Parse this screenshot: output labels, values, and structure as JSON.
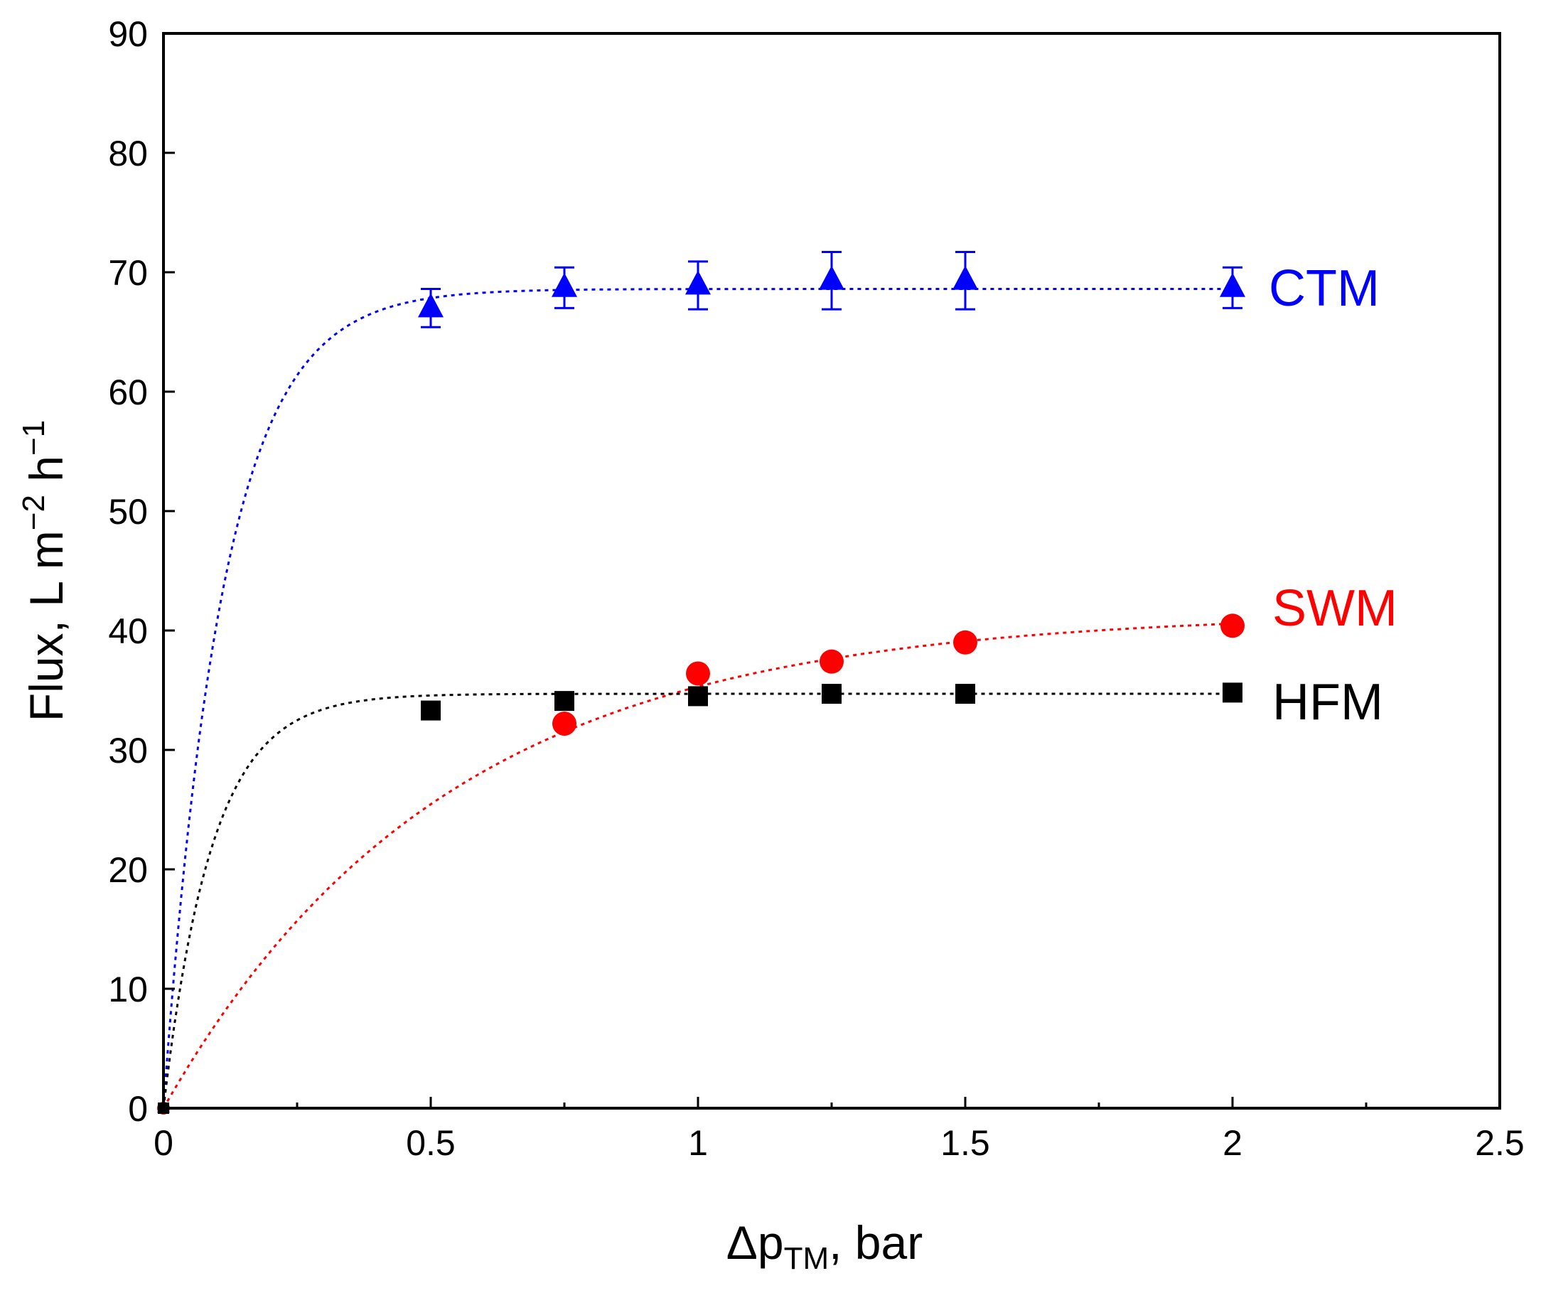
{
  "chart_data": {
    "type": "scatter",
    "title": "",
    "xlabel": {
      "symbol": "Δp",
      "subscript": "TM",
      "suffix": ", bar"
    },
    "ylabel": {
      "base": "Flux, L m",
      "exp1": "−2",
      "mid": " h",
      "exp2": "−1"
    },
    "xlim": [
      0,
      2.5
    ],
    "ylim": [
      0,
      90
    ],
    "x_ticks": [
      "0",
      "0.5",
      "1",
      "1.5",
      "2",
      "2.5"
    ],
    "x_tick_values": [
      0,
      0.5,
      1,
      1.5,
      2,
      2.5
    ],
    "y_ticks": [
      "0",
      "10",
      "20",
      "30",
      "40",
      "50",
      "60",
      "70",
      "80",
      "90"
    ],
    "y_tick_values": [
      0,
      10,
      20,
      30,
      40,
      50,
      60,
      70,
      80,
      90
    ],
    "grid": false,
    "series": [
      {
        "name": "CTM",
        "marker": "triangle",
        "color": "#0000ff",
        "x": [
          0,
          0.5,
          0.75,
          1.0,
          1.25,
          1.5,
          2.0
        ],
        "y": [
          0,
          67.0,
          68.7,
          68.9,
          69.3,
          69.3,
          68.7
        ],
        "error": [
          0,
          1.6,
          1.7,
          2.0,
          2.4,
          2.4,
          1.7
        ],
        "fit": {
          "a": 68.6,
          "k": 9.0
        }
      },
      {
        "name": "SWM",
        "marker": "circle",
        "color": "#ff0000",
        "x": [
          0,
          0.75,
          1.0,
          1.25,
          1.5,
          2.0
        ],
        "y": [
          0,
          32.2,
          36.4,
          37.4,
          39.0,
          40.4
        ],
        "error": [
          0,
          0,
          0,
          0,
          0,
          0
        ],
        "fit": {
          "a": 41.5,
          "k": 1.9
        }
      },
      {
        "name": "HFM",
        "marker": "square",
        "color": "#000000",
        "x": [
          0,
          0.5,
          0.75,
          1.0,
          1.25,
          1.5,
          2.0
        ],
        "y": [
          0,
          33.3,
          34.1,
          34.5,
          34.7,
          34.7,
          34.8
        ],
        "error": [
          0,
          0,
          0,
          0,
          0,
          0,
          0
        ],
        "fit": {
          "a": 34.7,
          "k": 11.0
        }
      }
    ],
    "labels": {
      "ctm": "CTM",
      "swm": "SWM",
      "hfm": "HFM"
    }
  }
}
